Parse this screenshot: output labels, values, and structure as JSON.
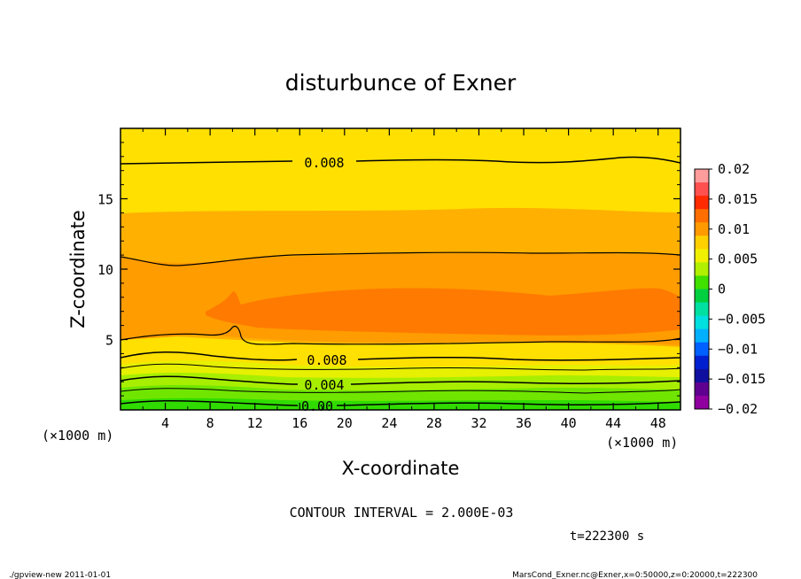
{
  "chart_data": {
    "type": "contour",
    "title": "disturbunce of Exner",
    "xlabel": "X-coordinate",
    "ylabel": "Z-coordinate",
    "x_unit": "(×1000 m)",
    "z_unit": "(×1000 m)",
    "xlim": [
      0,
      50
    ],
    "ylim": [
      0,
      20
    ],
    "x_ticks": [
      "4",
      "8",
      "12",
      "16",
      "20",
      "24",
      "28",
      "32",
      "36",
      "40",
      "44",
      "48"
    ],
    "y_ticks": [
      "5",
      "10",
      "15"
    ],
    "contour_interval_text": "CONTOUR INTERVAL = 2.000E-03",
    "time_text": "t=222300 s",
    "contour_labels": [
      "0.008",
      "0.008",
      "0.004",
      "0.00"
    ],
    "colorbar": {
      "ticks": [
        "0.02",
        "0.015",
        "0.01",
        "0.005",
        "0",
        "−0.005",
        "−0.01",
        "−0.015",
        "−0.02"
      ],
      "colors": [
        "#ff9c9c",
        "#ff5050",
        "#ff2a00",
        "#ff6e00",
        "#ff9a00",
        "#ffd000",
        "#f0f000",
        "#b0f000",
        "#40e000",
        "#00d040",
        "#00e0a0",
        "#00e0e0",
        "#00b0ff",
        "#0060ff",
        "#0020d0",
        "#1010a0",
        "#600090",
        "#9000a0"
      ]
    },
    "bands": [
      {
        "color": "#ffe000",
        "level_range": [
          0.006,
          0.008
        ]
      },
      {
        "color": "#ffb000",
        "level_range": [
          0.008,
          0.01
        ]
      },
      {
        "color": "#ff9800",
        "level_range": [
          0.01,
          0.012
        ]
      },
      {
        "color": "#ff7800",
        "level_range": [
          0.012,
          0.014
        ]
      },
      {
        "color": "#e0f000",
        "level_range": [
          0.004,
          0.006
        ]
      },
      {
        "color": "#a0f000",
        "level_range": [
          0.002,
          0.004
        ]
      },
      {
        "color": "#40e000",
        "level_range": [
          0.0,
          0.002
        ]
      }
    ]
  },
  "footer": {
    "left": "./gpview-new   2011-01-01",
    "right": "MarsCond_Exner.nc@Exner,x=0:50000,z=0:20000,t=222300"
  }
}
